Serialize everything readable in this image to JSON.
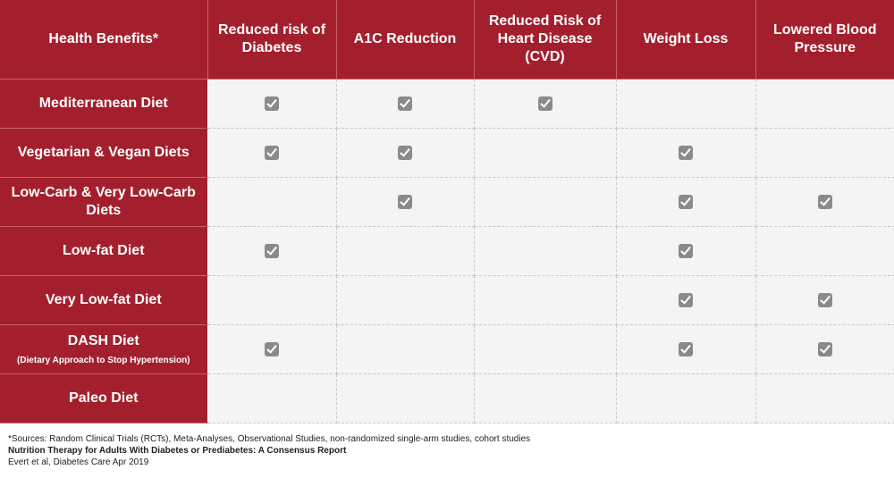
{
  "columns": [
    "Health Benefits*",
    "Reduced risk of\nDiabetes",
    "A1C Reduction",
    "Reduced Risk of\nHeart Disease\n(CVD)",
    "Weight Loss",
    "Lowered Blood\nPressure"
  ],
  "rows": [
    {
      "label": "Mediterranean Diet",
      "sub": "",
      "checks": [
        true,
        true,
        true,
        false,
        false
      ]
    },
    {
      "label": "Vegetarian & Vegan Diets",
      "sub": "",
      "checks": [
        true,
        true,
        false,
        true,
        false
      ]
    },
    {
      "label": "Low-Carb & Very Low-Carb Diets",
      "sub": "",
      "checks": [
        false,
        true,
        false,
        true,
        true
      ]
    },
    {
      "label": "Low-fat Diet",
      "sub": "",
      "checks": [
        true,
        false,
        false,
        true,
        false
      ]
    },
    {
      "label": "Very Low-fat Diet",
      "sub": "",
      "checks": [
        false,
        false,
        false,
        true,
        true
      ]
    },
    {
      "label": "DASH Diet",
      "sub": "(Dietary Approach to Stop Hypertension)",
      "checks": [
        true,
        false,
        false,
        true,
        true
      ]
    },
    {
      "label": "Paleo Diet",
      "sub": "",
      "checks": [
        false,
        false,
        false,
        false,
        false
      ]
    }
  ],
  "footnote": {
    "sources": "*Sources: Random Clinical Trials (RCTs), Meta-Analyses, Observational Studies, non-randomized single-arm studies, cohort studies",
    "report_title": "Nutrition Therapy for Adults With Diabetes or Prediabetes: A Consensus Report",
    "citation": "Evert et al, Diabetes Care Apr 2019"
  },
  "colors": {
    "header_red": "#a41f2d",
    "cell_bg": "#f4f4f4",
    "check_gray": "#8a8a8a"
  },
  "icons": {
    "check": "checkbox-checked-icon"
  }
}
